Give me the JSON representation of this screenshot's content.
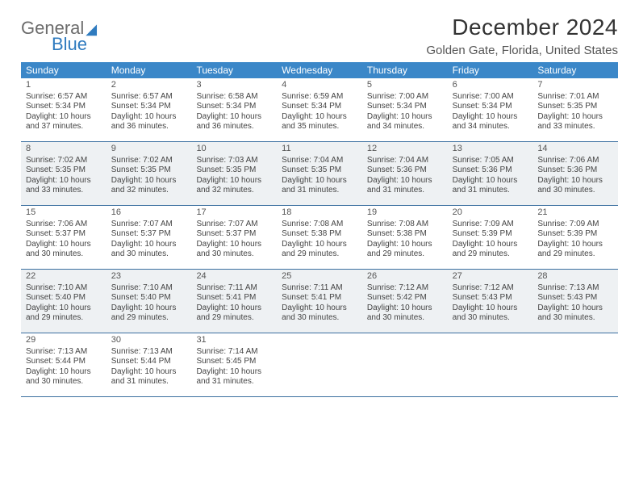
{
  "logo": {
    "line1": "General",
    "line2": "Blue"
  },
  "header": {
    "month_title": "December 2024",
    "location": "Golden Gate, Florida, United States"
  },
  "style": {
    "header_bg": "#3b87c8",
    "header_text": "#ffffff",
    "row_border": "#3b6fa0",
    "shaded_bg": "#eef1f3",
    "body_text": "#444444",
    "day_number_color": "#555555",
    "font_family": "Arial, Helvetica, sans-serif",
    "weekday_fontsize": 12,
    "daynum_fontsize": 11,
    "body_fontsize": 10
  },
  "weekdays": [
    "Sunday",
    "Monday",
    "Tuesday",
    "Wednesday",
    "Thursday",
    "Friday",
    "Saturday"
  ],
  "weeks": [
    {
      "shaded": false,
      "days": [
        {
          "n": "1",
          "sunrise": "Sunrise: 6:57 AM",
          "sunset": "Sunset: 5:34 PM",
          "daylight": "Daylight: 10 hours and 37 minutes."
        },
        {
          "n": "2",
          "sunrise": "Sunrise: 6:57 AM",
          "sunset": "Sunset: 5:34 PM",
          "daylight": "Daylight: 10 hours and 36 minutes."
        },
        {
          "n": "3",
          "sunrise": "Sunrise: 6:58 AM",
          "sunset": "Sunset: 5:34 PM",
          "daylight": "Daylight: 10 hours and 36 minutes."
        },
        {
          "n": "4",
          "sunrise": "Sunrise: 6:59 AM",
          "sunset": "Sunset: 5:34 PM",
          "daylight": "Daylight: 10 hours and 35 minutes."
        },
        {
          "n": "5",
          "sunrise": "Sunrise: 7:00 AM",
          "sunset": "Sunset: 5:34 PM",
          "daylight": "Daylight: 10 hours and 34 minutes."
        },
        {
          "n": "6",
          "sunrise": "Sunrise: 7:00 AM",
          "sunset": "Sunset: 5:34 PM",
          "daylight": "Daylight: 10 hours and 34 minutes."
        },
        {
          "n": "7",
          "sunrise": "Sunrise: 7:01 AM",
          "sunset": "Sunset: 5:35 PM",
          "daylight": "Daylight: 10 hours and 33 minutes."
        }
      ]
    },
    {
      "shaded": true,
      "days": [
        {
          "n": "8",
          "sunrise": "Sunrise: 7:02 AM",
          "sunset": "Sunset: 5:35 PM",
          "daylight": "Daylight: 10 hours and 33 minutes."
        },
        {
          "n": "9",
          "sunrise": "Sunrise: 7:02 AM",
          "sunset": "Sunset: 5:35 PM",
          "daylight": "Daylight: 10 hours and 32 minutes."
        },
        {
          "n": "10",
          "sunrise": "Sunrise: 7:03 AM",
          "sunset": "Sunset: 5:35 PM",
          "daylight": "Daylight: 10 hours and 32 minutes."
        },
        {
          "n": "11",
          "sunrise": "Sunrise: 7:04 AM",
          "sunset": "Sunset: 5:35 PM",
          "daylight": "Daylight: 10 hours and 31 minutes."
        },
        {
          "n": "12",
          "sunrise": "Sunrise: 7:04 AM",
          "sunset": "Sunset: 5:36 PM",
          "daylight": "Daylight: 10 hours and 31 minutes."
        },
        {
          "n": "13",
          "sunrise": "Sunrise: 7:05 AM",
          "sunset": "Sunset: 5:36 PM",
          "daylight": "Daylight: 10 hours and 31 minutes."
        },
        {
          "n": "14",
          "sunrise": "Sunrise: 7:06 AM",
          "sunset": "Sunset: 5:36 PM",
          "daylight": "Daylight: 10 hours and 30 minutes."
        }
      ]
    },
    {
      "shaded": false,
      "days": [
        {
          "n": "15",
          "sunrise": "Sunrise: 7:06 AM",
          "sunset": "Sunset: 5:37 PM",
          "daylight": "Daylight: 10 hours and 30 minutes."
        },
        {
          "n": "16",
          "sunrise": "Sunrise: 7:07 AM",
          "sunset": "Sunset: 5:37 PM",
          "daylight": "Daylight: 10 hours and 30 minutes."
        },
        {
          "n": "17",
          "sunrise": "Sunrise: 7:07 AM",
          "sunset": "Sunset: 5:37 PM",
          "daylight": "Daylight: 10 hours and 30 minutes."
        },
        {
          "n": "18",
          "sunrise": "Sunrise: 7:08 AM",
          "sunset": "Sunset: 5:38 PM",
          "daylight": "Daylight: 10 hours and 29 minutes."
        },
        {
          "n": "19",
          "sunrise": "Sunrise: 7:08 AM",
          "sunset": "Sunset: 5:38 PM",
          "daylight": "Daylight: 10 hours and 29 minutes."
        },
        {
          "n": "20",
          "sunrise": "Sunrise: 7:09 AM",
          "sunset": "Sunset: 5:39 PM",
          "daylight": "Daylight: 10 hours and 29 minutes."
        },
        {
          "n": "21",
          "sunrise": "Sunrise: 7:09 AM",
          "sunset": "Sunset: 5:39 PM",
          "daylight": "Daylight: 10 hours and 29 minutes."
        }
      ]
    },
    {
      "shaded": true,
      "days": [
        {
          "n": "22",
          "sunrise": "Sunrise: 7:10 AM",
          "sunset": "Sunset: 5:40 PM",
          "daylight": "Daylight: 10 hours and 29 minutes."
        },
        {
          "n": "23",
          "sunrise": "Sunrise: 7:10 AM",
          "sunset": "Sunset: 5:40 PM",
          "daylight": "Daylight: 10 hours and 29 minutes."
        },
        {
          "n": "24",
          "sunrise": "Sunrise: 7:11 AM",
          "sunset": "Sunset: 5:41 PM",
          "daylight": "Daylight: 10 hours and 29 minutes."
        },
        {
          "n": "25",
          "sunrise": "Sunrise: 7:11 AM",
          "sunset": "Sunset: 5:41 PM",
          "daylight": "Daylight: 10 hours and 30 minutes."
        },
        {
          "n": "26",
          "sunrise": "Sunrise: 7:12 AM",
          "sunset": "Sunset: 5:42 PM",
          "daylight": "Daylight: 10 hours and 30 minutes."
        },
        {
          "n": "27",
          "sunrise": "Sunrise: 7:12 AM",
          "sunset": "Sunset: 5:43 PM",
          "daylight": "Daylight: 10 hours and 30 minutes."
        },
        {
          "n": "28",
          "sunrise": "Sunrise: 7:13 AM",
          "sunset": "Sunset: 5:43 PM",
          "daylight": "Daylight: 10 hours and 30 minutes."
        }
      ]
    },
    {
      "shaded": false,
      "days": [
        {
          "n": "29",
          "sunrise": "Sunrise: 7:13 AM",
          "sunset": "Sunset: 5:44 PM",
          "daylight": "Daylight: 10 hours and 30 minutes."
        },
        {
          "n": "30",
          "sunrise": "Sunrise: 7:13 AM",
          "sunset": "Sunset: 5:44 PM",
          "daylight": "Daylight: 10 hours and 31 minutes."
        },
        {
          "n": "31",
          "sunrise": "Sunrise: 7:14 AM",
          "sunset": "Sunset: 5:45 PM",
          "daylight": "Daylight: 10 hours and 31 minutes."
        },
        {
          "n": "",
          "sunrise": "",
          "sunset": "",
          "daylight": ""
        },
        {
          "n": "",
          "sunrise": "",
          "sunset": "",
          "daylight": ""
        },
        {
          "n": "",
          "sunrise": "",
          "sunset": "",
          "daylight": ""
        },
        {
          "n": "",
          "sunrise": "",
          "sunset": "",
          "daylight": ""
        }
      ]
    }
  ]
}
